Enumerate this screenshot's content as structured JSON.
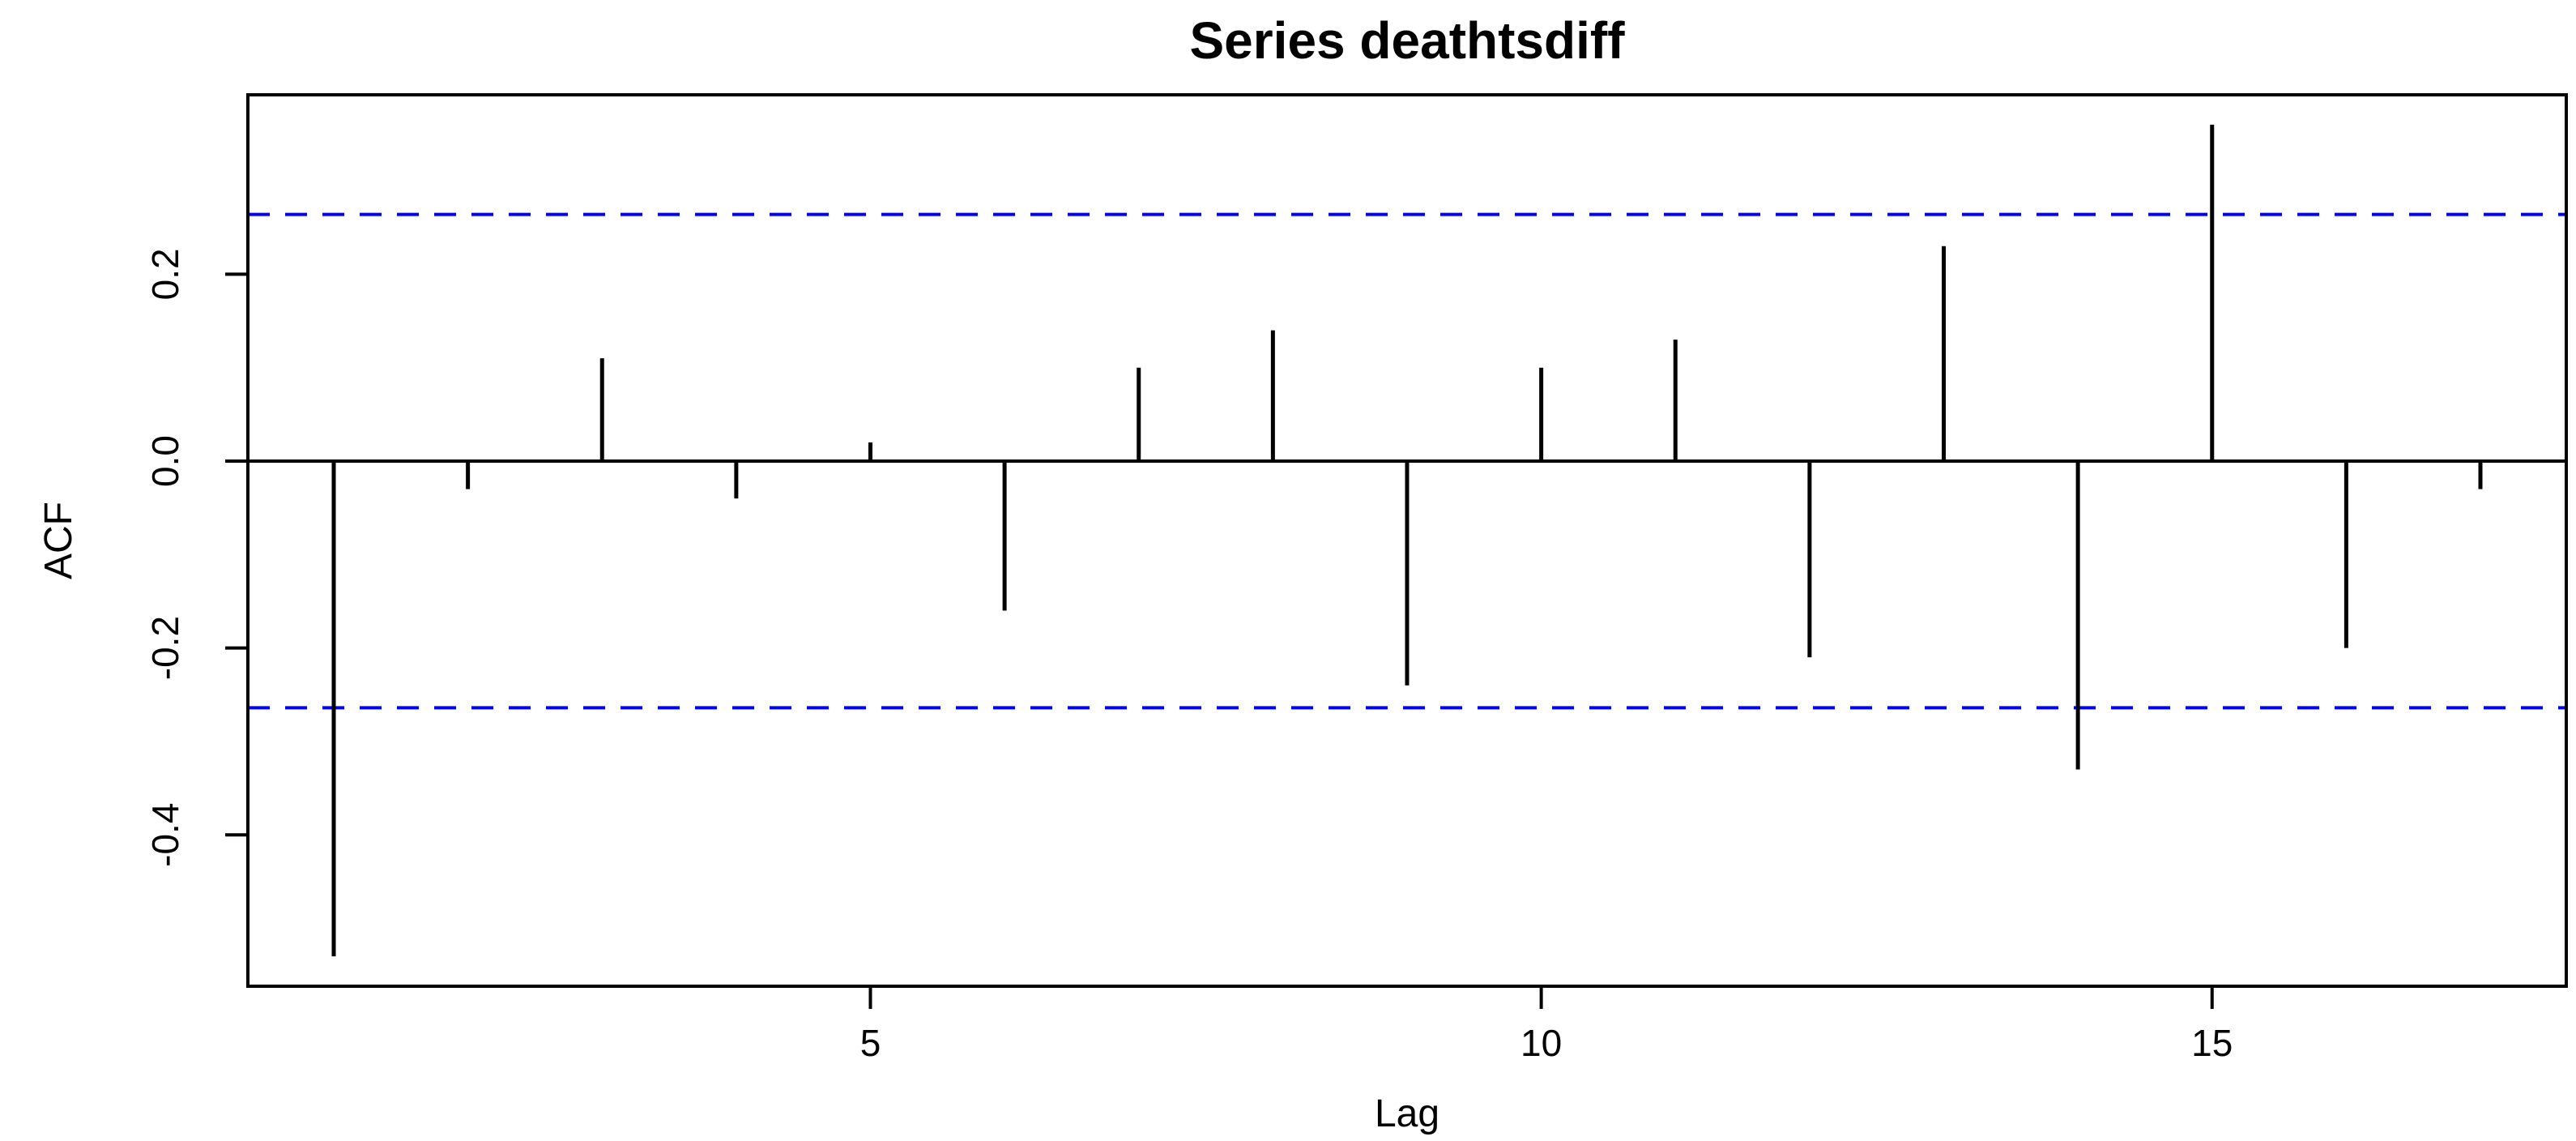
{
  "chart_data": {
    "type": "stem",
    "title": "Series deathtsdiff",
    "xlabel": "Lag",
    "ylabel": "ACF",
    "x": [
      1,
      2,
      3,
      4,
      5,
      6,
      7,
      8,
      9,
      10,
      11,
      12,
      13,
      14,
      15,
      16,
      17
    ],
    "values": [
      -0.53,
      -0.03,
      0.11,
      -0.04,
      0.02,
      -0.16,
      0.1,
      0.14,
      -0.24,
      0.1,
      0.13,
      -0.21,
      0.23,
      -0.33,
      0.36,
      -0.2,
      -0.03
    ],
    "confidence_bounds": [
      0.264,
      -0.264
    ],
    "xticks": [
      {
        "value": 5,
        "label": "5"
      },
      {
        "value": 10,
        "label": "10"
      },
      {
        "value": 15,
        "label": "15"
      }
    ],
    "yticks": [
      {
        "value": 0.2,
        "label": "0.2"
      },
      {
        "value": 0.0,
        "label": "0.0"
      },
      {
        "value": -0.2,
        "label": "-0.2"
      },
      {
        "value": -0.4,
        "label": "-0.4"
      }
    ],
    "xlim": [
      0.36,
      17.64
    ],
    "ylim": [
      -0.562,
      0.392
    ],
    "grid": false,
    "legend": null,
    "colors": {
      "spike": "#000000",
      "confidence": "#0000FF",
      "axis": "#000000",
      "background": "#FFFFFF",
      "title": "#000000"
    }
  }
}
